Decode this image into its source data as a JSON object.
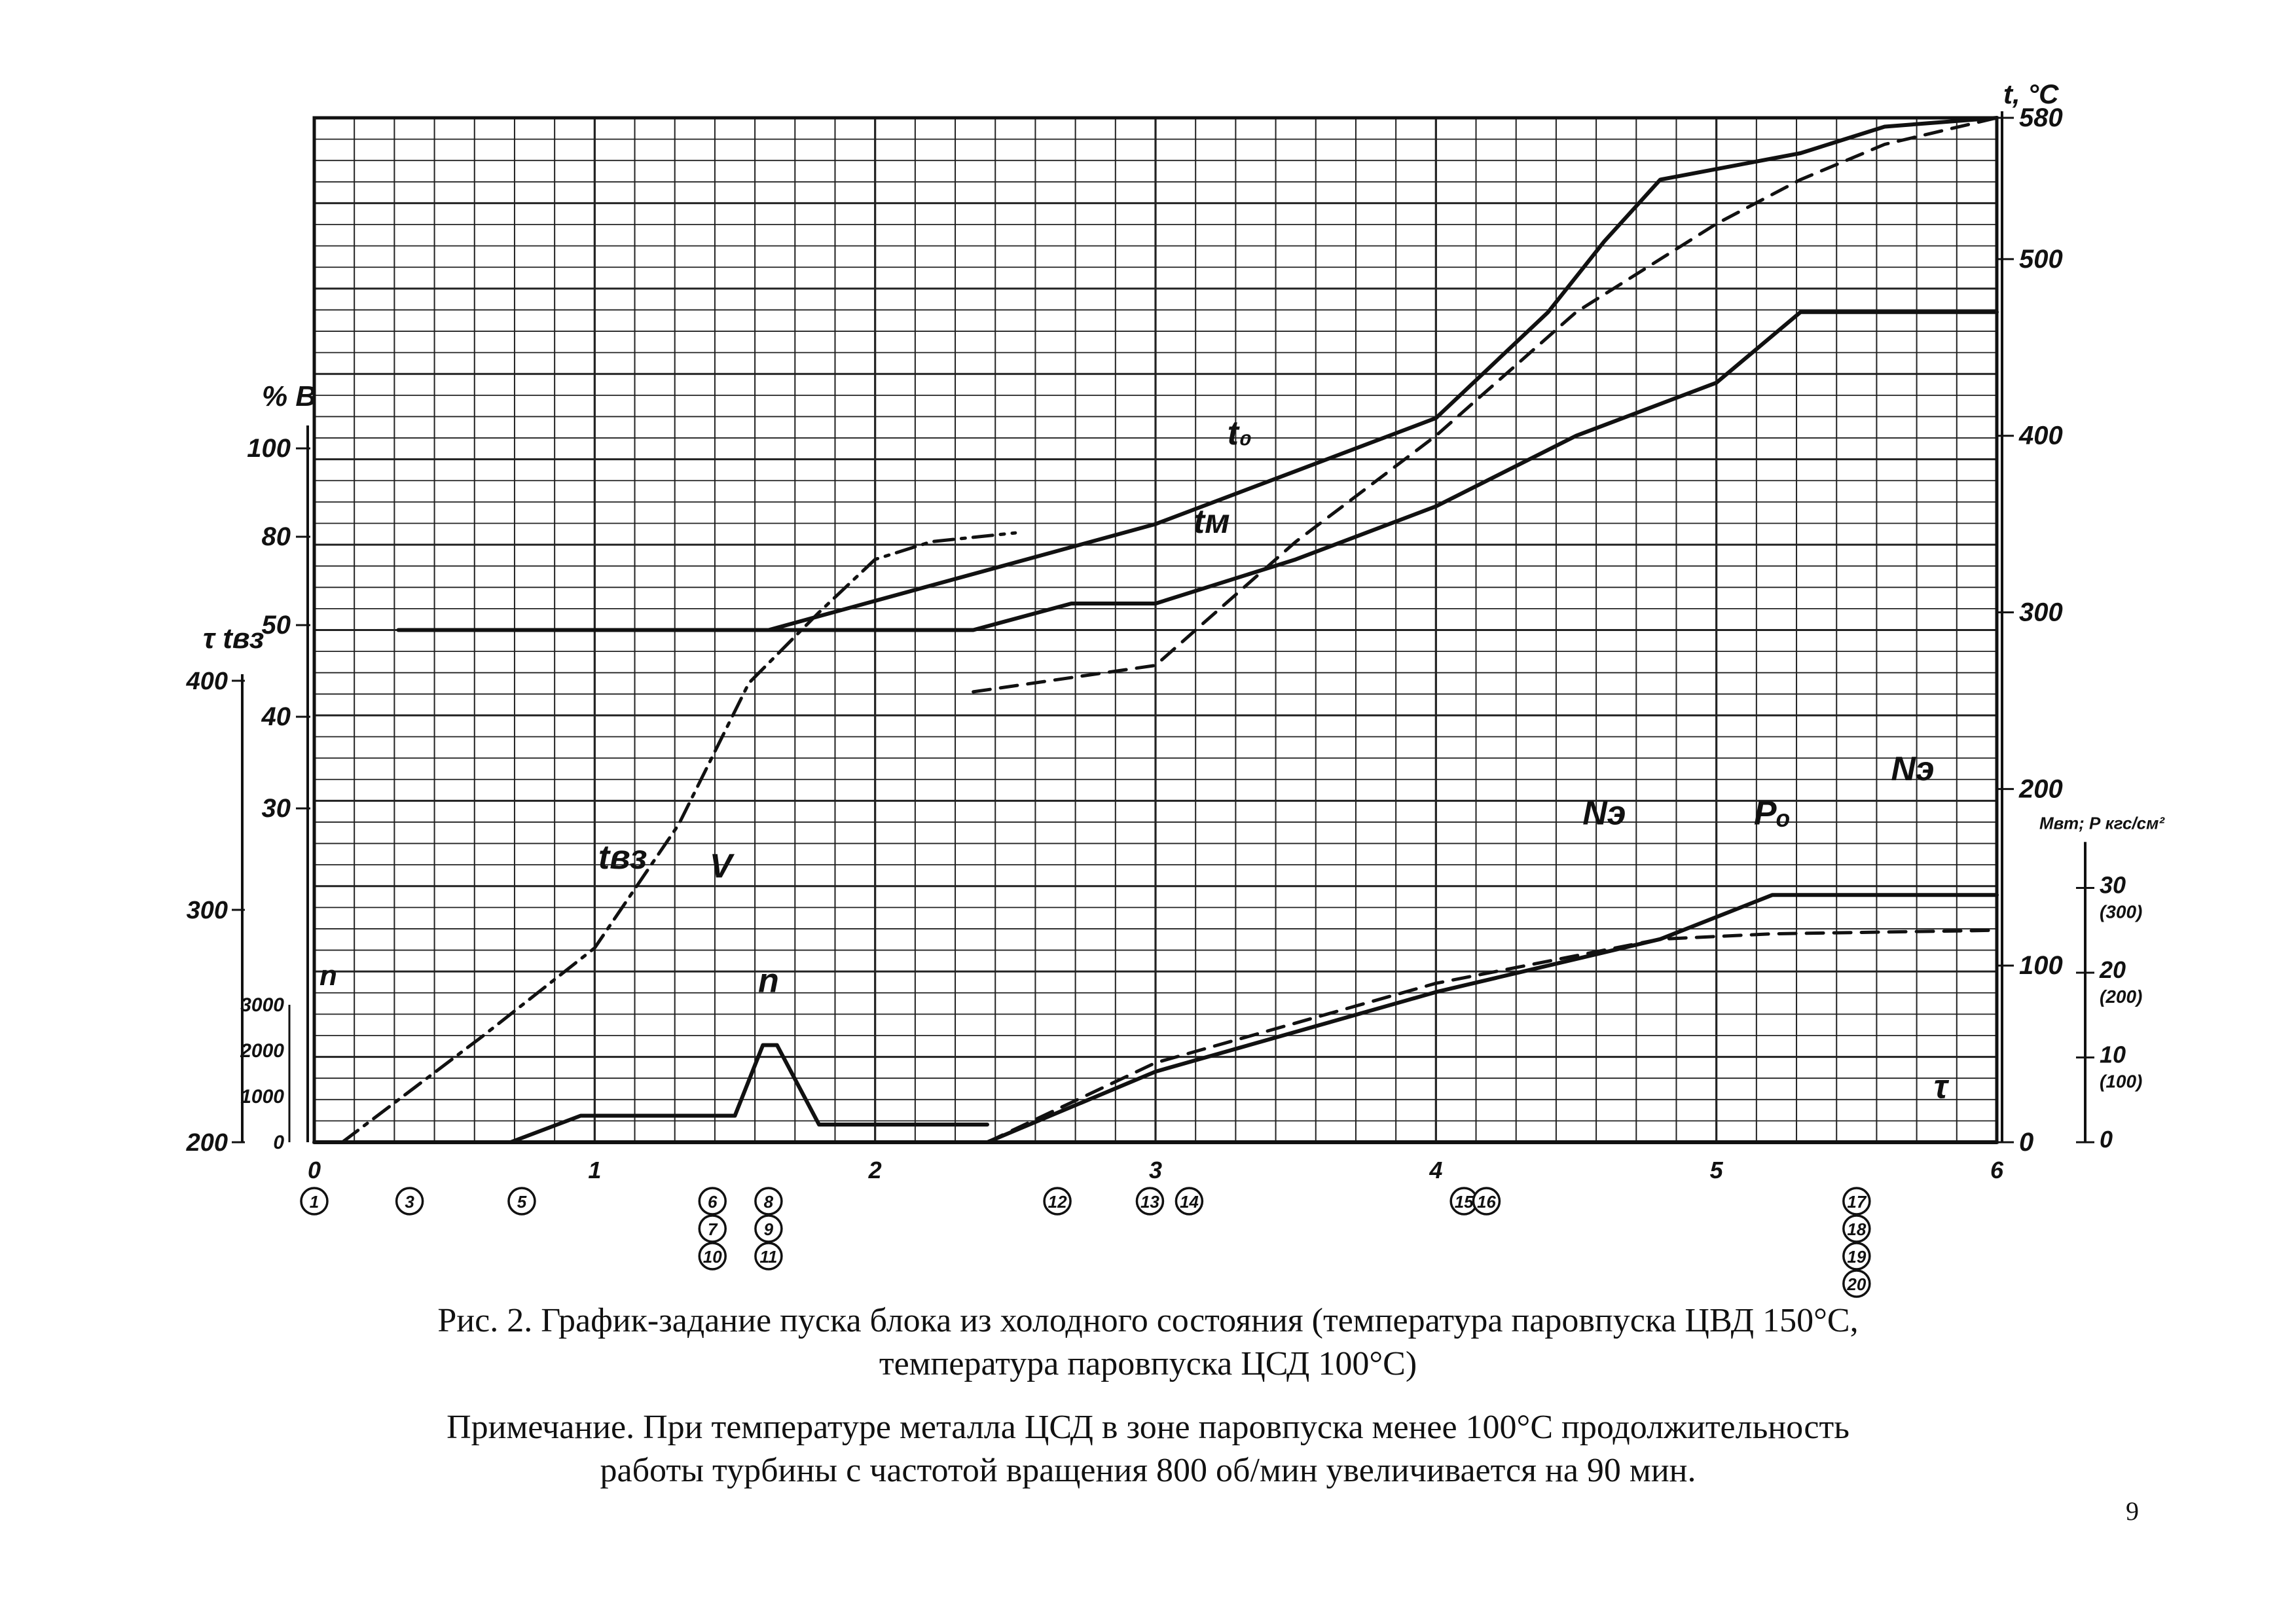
{
  "figure": {
    "caption_line1": "Рис. 2. График-задание пуска блока из холодного состояния (температура паровпуска ЦВД 150°С,",
    "caption_line2": "температура паровпуска ЦСД 100°С)",
    "note_line1": "Примечание. При температуре металла ЦСД в зоне паровпуска менее 100°С продолжительность",
    "note_line2": "работы турбины с частотой вращения 800 об/мин увеличивается на 90 мин.",
    "page_number": "9"
  },
  "chart_data": {
    "type": "line",
    "x_ticks": [
      "0",
      "1",
      "2",
      "3",
      "4",
      "5",
      "6"
    ],
    "xlim": [
      0,
      6
    ],
    "right_axis": {
      "label": "t, °C",
      "ticks": [
        "0",
        "100",
        "200",
        "300",
        "400",
        "500",
        "580"
      ],
      "ylim": [
        0,
        580
      ]
    },
    "right_axis_2": {
      "label": "Мвт; Р кгс/см²",
      "ticks": [
        "0",
        "10 (100)",
        "20 (200)",
        "30 (300)"
      ]
    },
    "left_axis_percent": {
      "label": "% В",
      "ticks": [
        "30",
        "40",
        "50",
        "80",
        "100"
      ]
    },
    "left_axis_tau": {
      "label": "τ  tвз",
      "ticks": [
        "200",
        "300",
        "400"
      ]
    },
    "left_axis_speed": {
      "label": "n",
      "ticks": [
        "0",
        "1000",
        "2000",
        "3000"
      ]
    },
    "series_labels": [
      "t₀",
      "tм",
      "tвз",
      "V",
      "n",
      "Nэ",
      "Nэ",
      "Pₒ",
      "τ"
    ],
    "series": [
      {
        "label_index": 0,
        "style": "solid",
        "x": [
          1.62,
          3.0,
          3.5,
          4.0,
          4.4,
          4.6,
          4.8,
          5.3,
          5.6,
          6.0
        ],
        "y": [
          290,
          350,
          380,
          410,
          470,
          510,
          545,
          560,
          575,
          580
        ]
      },
      {
        "label_index": 1,
        "style": "dashed",
        "x": [
          2.35,
          3.0,
          3.5,
          4.0,
          4.5,
          5.0,
          5.3,
          5.6,
          6.0
        ],
        "y": [
          255,
          270,
          340,
          400,
          470,
          520,
          545,
          565,
          580
        ]
      },
      {
        "label_index": 2,
        "style": "dashdot",
        "x": [
          0.1,
          0.6,
          1.0,
          1.3,
          1.55,
          1.8,
          2.0,
          2.2,
          2.5
        ],
        "y": [
          0,
          60,
          110,
          180,
          260,
          300,
          330,
          340,
          345
        ]
      },
      {
        "label_index": 3,
        "style": "solid",
        "x": [
          0.3,
          1.62,
          2.35,
          2.7,
          3.0,
          3.5,
          4.0,
          4.5,
          5.0,
          5.3,
          6.0
        ],
        "y": [
          290,
          290,
          290,
          305,
          305,
          330,
          360,
          400,
          430,
          470,
          470
        ]
      },
      {
        "label_index": 4,
        "style": "solid",
        "x": [
          0.7,
          0.95,
          1.5,
          1.6,
          1.65,
          1.8,
          2.4
        ],
        "y": [
          0,
          15,
          15,
          55,
          55,
          10,
          10
        ]
      },
      {
        "label_index": 5,
        "style": "solid",
        "x": [
          2.4,
          3.0,
          4.0,
          4.8,
          5.2,
          6.0
        ],
        "y": [
          0,
          40,
          85,
          115,
          140,
          140
        ]
      },
      {
        "label_index": 7,
        "style": "dashed",
        "x": [
          2.4,
          3.0,
          4.0,
          4.8,
          5.2,
          6.0
        ],
        "y": [
          0,
          45,
          90,
          115,
          118,
          120
        ]
      },
      {
        "label_index": 8,
        "style": "solid",
        "x": [
          0.0,
          6.0
        ],
        "y": [
          0,
          0
        ]
      }
    ],
    "event_markers": [
      "1",
      "3",
      "5",
      "6",
      "7",
      "10",
      "8",
      "9",
      "11",
      "12",
      "13",
      "14",
      "15",
      "16",
      "17",
      "18",
      "19",
      "20"
    ],
    "grid": true
  }
}
